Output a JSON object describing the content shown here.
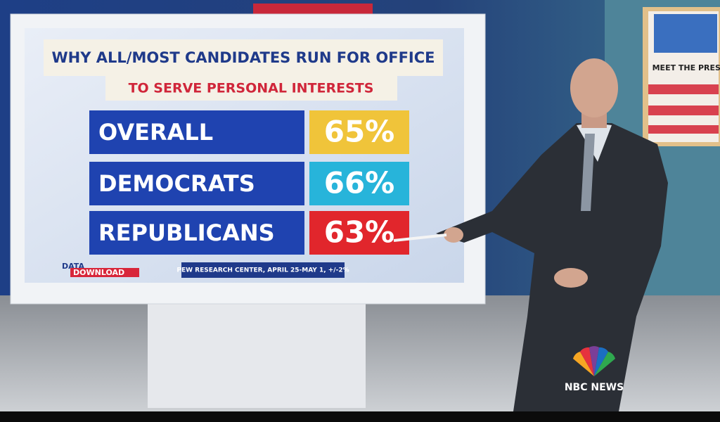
{
  "header": {
    "title": "WHY ALL/MOST CANDIDATES RUN FOR OFFICE",
    "subtitle": "TO SERVE PERSONAL INTERESTS"
  },
  "table": {
    "rows": [
      [
        "OVERALL",
        "65%"
      ],
      [
        "DEMOCRATS",
        "66%"
      ],
      [
        "REPUBLICANS",
        "63%"
      ]
    ]
  },
  "footer": {
    "brand_top": "DATA",
    "brand_bottom": "DOWNLOAD",
    "source": "PEW RESEARCH CENTER, APRIL 25-MAY 1, +/-2%"
  },
  "studio": {
    "sign": "MEET THE PRESS",
    "network": "NBC NEWS"
  }
}
